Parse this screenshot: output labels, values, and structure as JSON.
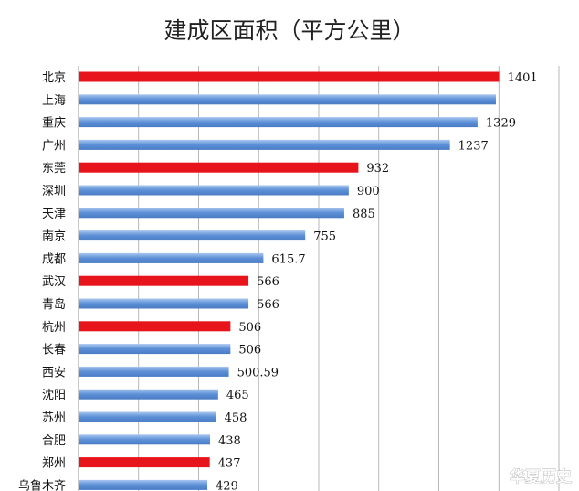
{
  "chart_data": {
    "type": "bar",
    "orientation": "horizontal",
    "title": "建成区面积（平方公里）",
    "categories": [
      "北京",
      "上海",
      "重庆",
      "广州",
      "东莞",
      "深圳",
      "天津",
      "南京",
      "成都",
      "武汉",
      "青岛",
      "杭州",
      "长春",
      "西安",
      "沈阳",
      "苏州",
      "合肥",
      "郑州",
      "乌鲁木齐"
    ],
    "values": [
      1401,
      null,
      1329,
      1237,
      932,
      900,
      885,
      755,
      615.7,
      566,
      566,
      506,
      506,
      500.59,
      465,
      458,
      438,
      437,
      429
    ],
    "bar_lengths": [
      1401,
      1390,
      1329,
      1237,
      932,
      900,
      885,
      755,
      615.7,
      566,
      566,
      506,
      506,
      500.59,
      465,
      458,
      438,
      437,
      429
    ],
    "value_labels": [
      "1401",
      "",
      "1329",
      "1237",
      "932",
      "900",
      "885",
      "755",
      "615.7",
      "566",
      "566",
      "506",
      "506",
      "500.59",
      "465",
      "458",
      "438",
      "437",
      "429"
    ],
    "highlighted": [
      "北京",
      "东莞",
      "武汉",
      "杭州",
      "郑州"
    ],
    "xlim": [
      0,
      1600
    ],
    "grid": true,
    "colors": {
      "highlight": "#e8141c",
      "normal": "#5b8fd6",
      "normal_light": "#a9c7f0",
      "grid": "#a6a6a6"
    }
  },
  "watermark": "华夏历史"
}
